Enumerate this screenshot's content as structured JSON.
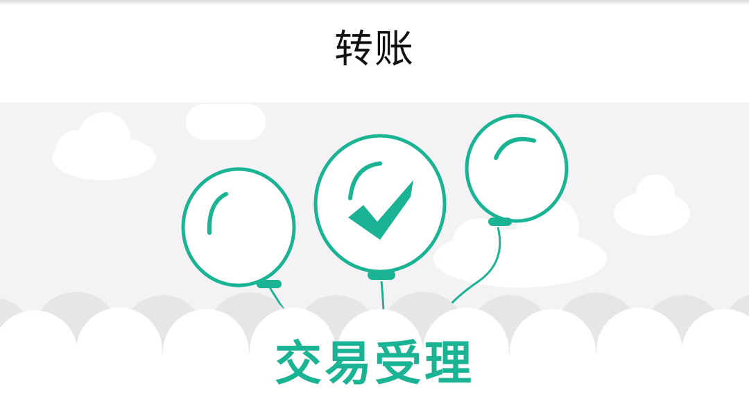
{
  "header": {
    "title": "转账"
  },
  "banner": {
    "status_text": "交易受理",
    "status_icon": "checkmark-icon"
  },
  "colors": {
    "accent": "#1ab394",
    "sky": "#f5f2f5",
    "cloud": "#ffffff",
    "ground_back": "#e6e6e6",
    "title_text": "#111111"
  }
}
